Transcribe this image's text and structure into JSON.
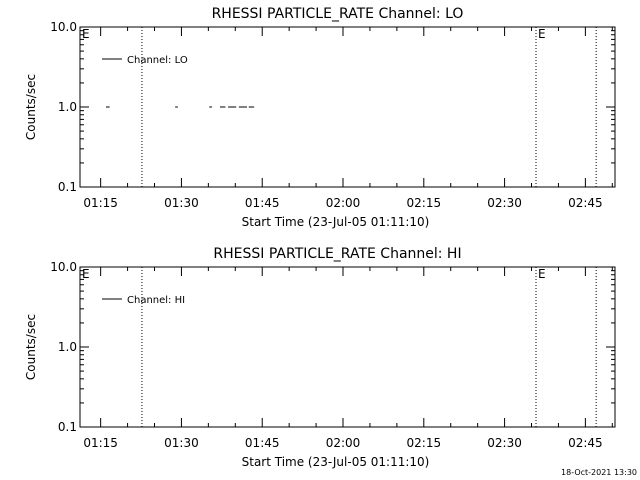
{
  "chart_data": [
    {
      "type": "line",
      "title": "RHESSI PARTICLE_RATE Channel: LO",
      "xlabel": "Start Time (23-Jul-05 01:11:10)",
      "ylabel": "Counts/sec",
      "y_scale": "log",
      "ylim": [
        0.1,
        10.0
      ],
      "y_ticks": [
        "10.0",
        "1.0",
        "0.1"
      ],
      "x_range": [
        "01:11:10",
        "02:50:30"
      ],
      "x_ticks": [
        "01:15",
        "01:30",
        "01:45",
        "02:00",
        "02:15",
        "02:30",
        "02:45"
      ],
      "legend": {
        "label": "Channel: LO",
        "position": "top-left"
      },
      "markers": [
        {
          "label": "",
          "time": "01:22:40",
          "style": "dotted"
        },
        {
          "label": "E",
          "time": "02:35:50",
          "style": "dotted"
        },
        {
          "label": "",
          "time": "02:47:00",
          "style": "dotted"
        }
      ],
      "corner_label": "E",
      "series": [
        {
          "values_note_free": true,
          "segments": [
            {
              "x": [
                "01:16:00",
                "01:16:40"
              ],
              "y": [
                1.0,
                1.0
              ]
            },
            {
              "x": [
                "01:28:50",
                "01:29:20"
              ],
              "y": [
                1.0,
                1.0
              ]
            },
            {
              "x": [
                "01:35:10",
                "01:35:40"
              ],
              "y": [
                1.0,
                1.0
              ]
            },
            {
              "x": [
                "01:37:10",
                "01:38:10"
              ],
              "y": [
                1.0,
                1.0
              ]
            },
            {
              "x": [
                "01:38:40",
                "01:40:10"
              ],
              "y": [
                1.0,
                1.0
              ]
            },
            {
              "x": [
                "01:40:40",
                "01:42:10"
              ],
              "y": [
                1.0,
                1.0
              ]
            },
            {
              "x": [
                "01:42:30",
                "01:43:30"
              ],
              "y": [
                1.0,
                1.0
              ]
            }
          ]
        }
      ]
    },
    {
      "type": "line",
      "title": "RHESSI PARTICLE_RATE Channel: HI",
      "xlabel": "Start Time (23-Jul-05 01:11:10)",
      "ylabel": "Counts/sec",
      "y_scale": "log",
      "ylim": [
        0.1,
        10.0
      ],
      "y_ticks": [
        "10.0",
        "1.0",
        "0.1"
      ],
      "x_range": [
        "01:11:10",
        "02:50:30"
      ],
      "x_ticks": [
        "01:15",
        "01:30",
        "01:45",
        "02:00",
        "02:15",
        "02:30",
        "02:45"
      ],
      "legend": {
        "label": "Channel: HI",
        "position": "top-left"
      },
      "markers": [
        {
          "label": "",
          "time": "01:22:40",
          "style": "dotted"
        },
        {
          "label": "E",
          "time": "02:35:50",
          "style": "dotted"
        },
        {
          "label": "",
          "time": "02:47:00",
          "style": "dotted"
        }
      ],
      "corner_label": "E",
      "series": [
        {
          "segments": []
        }
      ]
    }
  ],
  "footer": {
    "timestamp": "18-Oct-2021 13:30"
  }
}
